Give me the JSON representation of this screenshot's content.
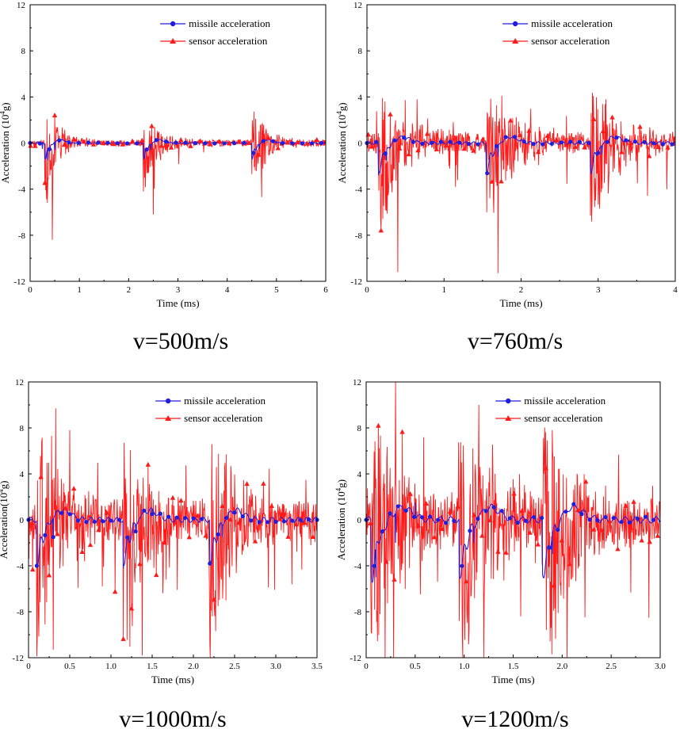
{
  "colors": {
    "missile": "#1f1fe0",
    "sensor": "#ff1a1a"
  },
  "legend": {
    "missile": "missile acceleration",
    "sensor": "sensor acceleration"
  },
  "chart_data": [
    {
      "type": "line",
      "caption": "v=500m/s",
      "xlabel": "Time (ms)",
      "ylabel_main": "Acceleration (10",
      "ylabel_sup": "4",
      "ylabel_tail": "g)",
      "xlim": [
        0,
        6
      ],
      "ylim": [
        -12,
        12
      ],
      "xticks": [
        0,
        1,
        2,
        3,
        4,
        5,
        6
      ],
      "xtick_labels": [
        "0",
        "1",
        "2",
        "3",
        "4",
        "5",
        "6"
      ],
      "yticks": [
        -12,
        -8,
        -4,
        0,
        4,
        8,
        12
      ],
      "ytick_labels": [
        "-12",
        "-8",
        "-4",
        "0",
        "4",
        "8",
        "12"
      ],
      "events": [
        0.3,
        2.3,
        4.5
      ],
      "missile_amp": 1.3,
      "sensor_amp": 3.2,
      "noise": 0.4,
      "marker_step": 0.2,
      "seed": 11,
      "series": [
        {
          "name": "missile acceleration",
          "x": [
            0,
            0.25,
            0.35,
            0.5,
            0.8,
            2.2,
            2.3,
            2.45,
            2.8,
            4.4,
            4.5,
            4.65,
            5.0,
            6.0
          ],
          "values": [
            0,
            -0.5,
            -1.5,
            -0.6,
            0.2,
            0,
            -1.2,
            -0.6,
            0.2,
            0,
            -1.3,
            -0.5,
            0.1,
            0
          ]
        },
        {
          "name": "sensor acceleration",
          "x": [
            0.35,
            0.45,
            0.5,
            2.3,
            2.5,
            4.5,
            4.7
          ],
          "values": [
            -5.2,
            -8.4,
            2.4,
            -4.2,
            -6.2,
            -2.7,
            -4.7
          ]
        }
      ]
    },
    {
      "type": "line",
      "caption": "v=760m/s",
      "xlabel": "Time (ms)",
      "ylabel_main": "Acceleration (10",
      "ylabel_sup": "4",
      "ylabel_tail": "g)",
      "xlim": [
        0,
        4
      ],
      "ylim": [
        -12,
        12
      ],
      "xticks": [
        0,
        1,
        2,
        3,
        4
      ],
      "xtick_labels": [
        "0",
        "1",
        "2",
        "3",
        "4"
      ],
      "yticks": [
        -12,
        -8,
        -4,
        0,
        4,
        8,
        12
      ],
      "ytick_labels": [
        "-12",
        "-8",
        "-4",
        "0",
        "4",
        "8",
        "12"
      ],
      "events": [
        0.15,
        1.55,
        2.9
      ],
      "missile_amp": 2.4,
      "sensor_amp": 5.5,
      "noise": 1.3,
      "marker_step": 0.12,
      "seed": 23,
      "series": [
        {
          "name": "missile acceleration",
          "x": [
            0,
            0.15,
            0.25,
            0.5,
            1.55,
            1.7,
            2.0,
            2.9,
            3.05,
            3.4,
            3.85
          ],
          "values": [
            0,
            -2.8,
            -1.5,
            0.2,
            -2.7,
            -1.2,
            0.2,
            -2.1,
            -1.0,
            0.3,
            0.2
          ]
        },
        {
          "name": "sensor acceleration",
          "x": [
            0.4,
            0.65,
            1.7,
            1.75,
            2.9,
            3.1
          ],
          "values": [
            -11.2,
            3.8,
            -11.3,
            4.1,
            -6.3,
            3.8
          ]
        }
      ]
    },
    {
      "type": "line",
      "caption": "v=1000m/s",
      "xlabel": "Time (ms)",
      "ylabel_main": "Acceleration(10",
      "ylabel_sup": "4",
      "ylabel_tail": "g)",
      "xlim": [
        0,
        3.5
      ],
      "ylim": [
        -12,
        12
      ],
      "xticks": [
        0,
        0.5,
        1,
        1.5,
        2,
        2.5,
        3,
        3.5
      ],
      "xtick_labels": [
        "0",
        "0.5",
        "1.0",
        "1.5",
        "2.0",
        "2.5",
        "3.0",
        "3.5"
      ],
      "yticks": [
        -12,
        -8,
        -4,
        0,
        4,
        8,
        12
      ],
      "ytick_labels": [
        "-12",
        "-8",
        "-4",
        "0",
        "4",
        "8",
        "12"
      ],
      "events": [
        0.1,
        1.15,
        2.2
      ],
      "missile_amp": 3.8,
      "sensor_amp": 8.0,
      "noise": 2.4,
      "marker_step": 0.1,
      "seed": 37,
      "series": [
        {
          "name": "missile acceleration",
          "x": [
            0,
            0.1,
            0.3,
            0.5,
            1.15,
            1.3,
            1.5,
            2.2,
            2.35,
            2.6,
            3.5
          ],
          "values": [
            0,
            -4.0,
            -1.5,
            0.5,
            -4.2,
            -1.0,
            0.5,
            -3.8,
            -1.5,
            0.3,
            0
          ]
        },
        {
          "name": "sensor acceleration",
          "x": [
            0.3,
            0.33,
            0.5,
            1.38,
            1.45,
            2.3,
            2.4
          ],
          "values": [
            -11.3,
            9.7,
            7.8,
            -11.8,
            4.8,
            -7.5,
            5.7
          ]
        }
      ]
    },
    {
      "type": "line",
      "caption": "v=1200m/s",
      "xlabel": "Time (ms)",
      "ylabel_main": "Acceleration (10",
      "ylabel_sup": "4",
      "ylabel_tail": "g)",
      "xlim": [
        0,
        3
      ],
      "ylim": [
        -12,
        12
      ],
      "xticks": [
        0,
        0.5,
        1,
        1.5,
        2,
        2.5,
        3
      ],
      "xtick_labels": [
        "0",
        "0.5",
        "1.0",
        "1.5",
        "2.0",
        "2.5",
        "3.0"
      ],
      "yticks": [
        -12,
        -8,
        -4,
        0,
        4,
        8,
        12
      ],
      "ytick_labels": [
        "-12",
        "-8",
        "-4",
        "0",
        "4",
        "8",
        "12"
      ],
      "events": [
        0.05,
        0.95,
        1.8
      ],
      "missile_amp": 5.0,
      "sensor_amp": 9.5,
      "noise": 3.0,
      "marker_step": 0.08,
      "seed": 53,
      "series": [
        {
          "name": "missile acceleration",
          "x": [
            0,
            0.1,
            0.3,
            0.5,
            0.95,
            1.1,
            1.3,
            1.8,
            1.9,
            2.2,
            3.0
          ],
          "values": [
            0,
            -5.0,
            -2.0,
            1.5,
            -5.0,
            -2.0,
            1.0,
            -4.8,
            -3.0,
            0.5,
            0
          ]
        },
        {
          "name": "sensor acceleration",
          "x": [
            0.28,
            0.3,
            0.95,
            1.15,
            1.2,
            2.05
          ],
          "values": [
            -12.0,
            12.0,
            -8.8,
            10.0,
            -12.0,
            -12.0
          ]
        }
      ]
    }
  ]
}
